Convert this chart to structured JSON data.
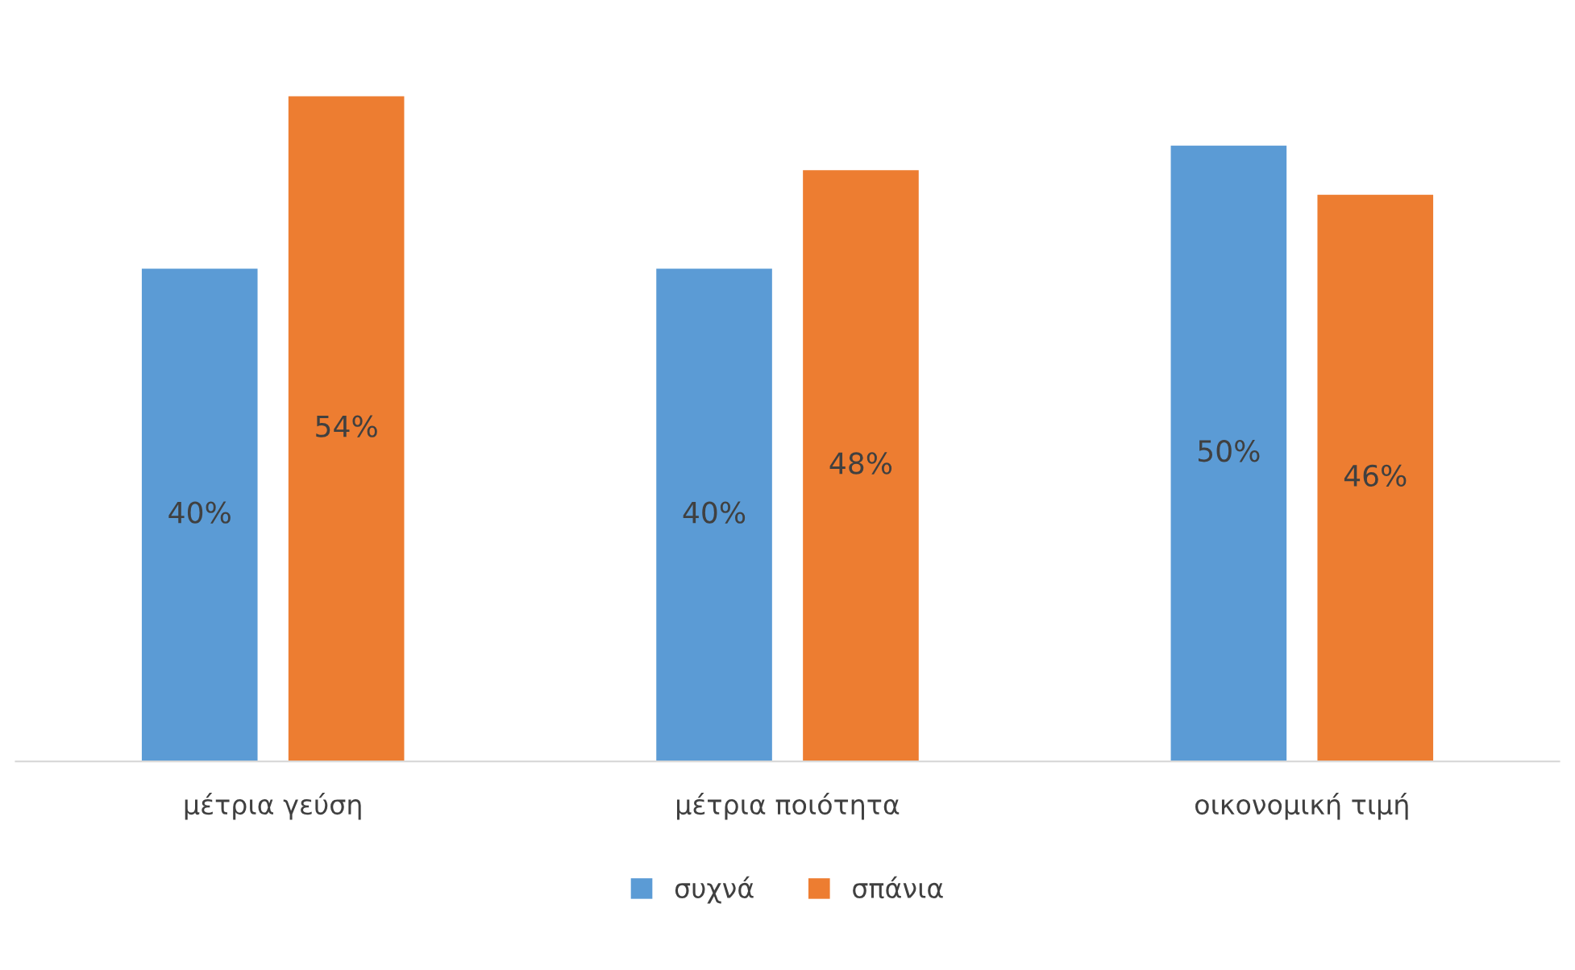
{
  "chart_data": {
    "type": "bar",
    "categories": [
      "μέτρια γεύση",
      "μέτρια ποιότητα",
      "οικονομική τιμή"
    ],
    "series": [
      {
        "name": "συχνά",
        "color": "#5b9bd5",
        "values": [
          40,
          40,
          50
        ],
        "value_labels": [
          "40%",
          "40%",
          "50%"
        ]
      },
      {
        "name": "σπάνια",
        "color": "#ed7d31",
        "values": [
          54,
          48,
          46
        ],
        "value_labels": [
          "54%",
          "48%",
          "46%"
        ]
      }
    ],
    "legend": "bottom",
    "grid": false,
    "tick_labels": "x"
  }
}
